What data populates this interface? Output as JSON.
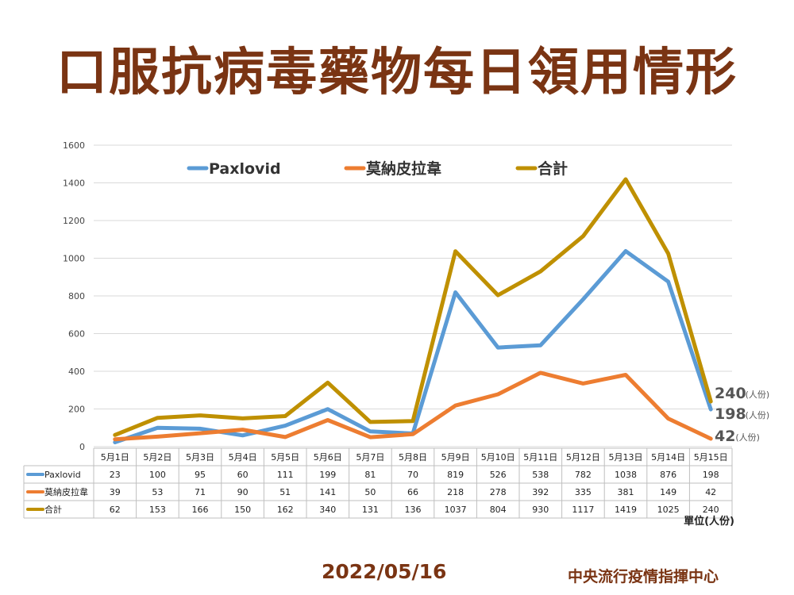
{
  "page": {
    "title": "口服抗病毒藥物每日領用情形",
    "date": "2022/05/16",
    "org": "中央流行疫情指揮中心"
  },
  "chart_data": {
    "type": "line",
    "categories": [
      "5月1日",
      "5月2日",
      "5月3日",
      "5月4日",
      "5月5日",
      "5月6日",
      "5月7日",
      "5月8日",
      "5月9日",
      "5月10日",
      "5月11日",
      "5月12日",
      "5月13日",
      "5月14日",
      "5月15日"
    ],
    "ylim": [
      0,
      1600
    ],
    "yticks": [
      0,
      200,
      400,
      600,
      800,
      1000,
      1200,
      1400,
      1600
    ],
    "grid": true,
    "legend_position": "top",
    "unit_label": "單位(人份)",
    "end_suffix": "(人份)",
    "series": [
      {
        "name": "Paxlovid",
        "color": "#5b9bd5",
        "values": [
          23,
          100,
          95,
          60,
          111,
          199,
          81,
          70,
          819,
          526,
          538,
          782,
          1038,
          876,
          198
        ]
      },
      {
        "name": "莫納皮拉韋",
        "color": "#ed7d31",
        "values": [
          39,
          53,
          71,
          90,
          51,
          141,
          50,
          66,
          218,
          278,
          392,
          335,
          381,
          149,
          42
        ]
      },
      {
        "name": "合計",
        "color": "#bf9000",
        "values": [
          62,
          153,
          166,
          150,
          162,
          340,
          131,
          136,
          1037,
          804,
          930,
          1117,
          1419,
          1025,
          240
        ]
      }
    ]
  }
}
